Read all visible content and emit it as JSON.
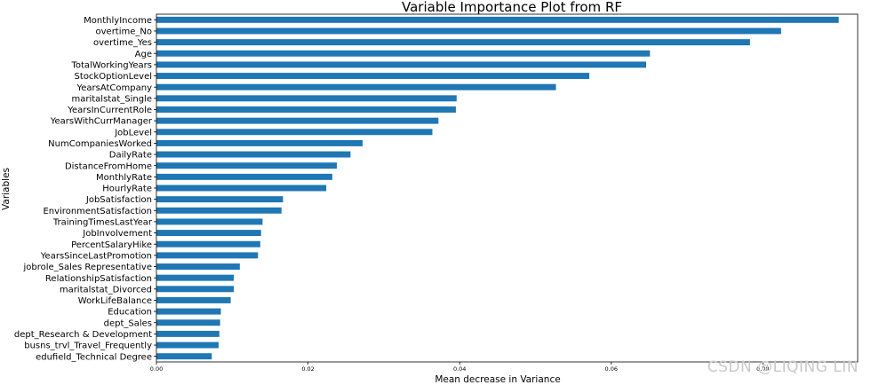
{
  "watermark": "CSDN @LIQING LIN",
  "chart_data": {
    "type": "bar",
    "orientation": "horizontal",
    "title": "Variable Importance Plot from RF",
    "xlabel": "Mean decrease in Variance",
    "ylabel": "Variables",
    "xlim": [
      0,
      0.0925
    ],
    "xticks": [
      "0.00",
      "0.02",
      "0.04",
      "0.06",
      "0.08"
    ],
    "bar_color": "#1f77b4",
    "categories": [
      "MonthlyIncome",
      "overtime_No",
      "overtime_Yes",
      "Age",
      "TotalWorkingYears",
      "StockOptionLevel",
      "YearsAtCompany",
      "maritalstat_Single",
      "YearsInCurrentRole",
      "YearsWithCurrManager",
      "JobLevel",
      "NumCompaniesWorked",
      "DailyRate",
      "DistanceFromHome",
      "MonthlyRate",
      "HourlyRate",
      "JobSatisfaction",
      "EnvironmentSatisfaction",
      "TrainingTimesLastYear",
      "JobInvolvement",
      "PercentSalaryHike",
      "YearsSinceLastPromotion",
      "jobrole_Sales Representative",
      "RelationshipSatisfaction",
      "maritalstat_Divorced",
      "WorkLifeBalance",
      "Education",
      "dept_Sales",
      "dept_Research & Development",
      "busns_trvl_Travel_Frequently",
      "edufield_Technical Degree"
    ],
    "values": [
      0.09,
      0.0824,
      0.0783,
      0.0651,
      0.0646,
      0.0571,
      0.0527,
      0.0396,
      0.0395,
      0.0372,
      0.0364,
      0.0272,
      0.0256,
      0.0238,
      0.0232,
      0.0224,
      0.0167,
      0.0165,
      0.014,
      0.0138,
      0.0137,
      0.0134,
      0.011,
      0.0102,
      0.0102,
      0.0098,
      0.0085,
      0.0084,
      0.0083,
      0.0082,
      0.0073
    ]
  }
}
